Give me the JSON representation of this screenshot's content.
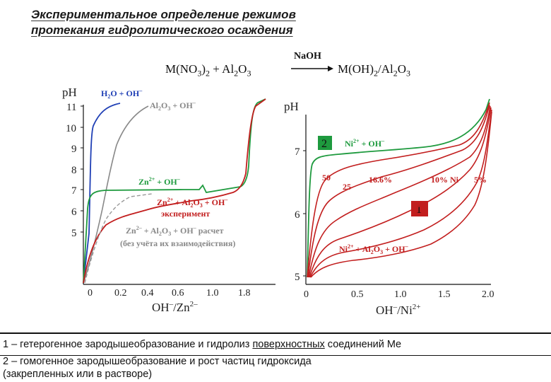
{
  "slide": {
    "title_line1": "Экспериментальное определение режимов",
    "title_line2": "протекания гидролитического осаждения",
    "reaction": {
      "left": "M(NO3)2 + Al2O3",
      "reagent": "NaOH",
      "right": "M(OH)2/Al2O3"
    },
    "footer": {
      "line1_prefix": "1 – гетерогенное зародышеобразование и гидролиз ",
      "line1_underlined": "поверхностных",
      "line1_suffix": " соединений Me",
      "line2": "2 –  гомогенное зародышеобразование и рост частиц  гидроксида",
      "line3": "(закрепленных или в растворе)"
    }
  },
  "chart_data": [
    {
      "type": "line",
      "ylabel": "pH",
      "xlabel": "OH⁻/Zn²⁺",
      "x_ticks": [
        "0",
        "0.2",
        "0.4",
        "0.6",
        "1.0",
        "1.8"
      ],
      "y_ticks": [
        "5",
        "6",
        "7",
        "8",
        "9",
        "10",
        "11"
      ],
      "ylim": [
        5,
        11.5
      ],
      "series": [
        {
          "name": "H2O + OH⁻",
          "color": "#1f3fb5",
          "points": [
            [
              0,
              5.2
            ],
            [
              0.02,
              7.2
            ],
            [
              0.05,
              10.6
            ],
            [
              0.1,
              10.95
            ],
            [
              0.2,
              11.1
            ],
            [
              0.4,
              11.3
            ]
          ]
        },
        {
          "name": "Al2O3 + OH⁻",
          "color": "#888888",
          "points": [
            [
              0,
              5.3
            ],
            [
              0.05,
              6.0
            ],
            [
              0.15,
              7.5
            ],
            [
              0.25,
              9.3
            ],
            [
              0.4,
              10.3
            ],
            [
              0.6,
              10.85
            ],
            [
              0.9,
              11.2
            ]
          ]
        },
        {
          "name": "Zn²⁺ + OH⁻",
          "color": "#1e9a3e",
          "points": [
            [
              0,
              5.2
            ],
            [
              0.02,
              6.7
            ],
            [
              0.08,
              6.95
            ],
            [
              0.4,
              7.0
            ],
            [
              1.0,
              7.05
            ],
            [
              1.55,
              7.15
            ],
            [
              1.7,
              7.8
            ],
            [
              1.78,
              9.5
            ],
            [
              1.82,
              10.5
            ],
            [
              1.9,
              11.1
            ]
          ]
        },
        {
          "name": "Zn²⁺ + Al2O3 + OH⁻ эксперимент",
          "color": "#c21e1e",
          "points": [
            [
              0,
              5.3
            ],
            [
              0.1,
              5.85
            ],
            [
              0.3,
              6.3
            ],
            [
              0.6,
              6.55
            ],
            [
              1.0,
              6.75
            ],
            [
              1.5,
              6.95
            ],
            [
              1.65,
              7.3
            ],
            [
              1.75,
              8.8
            ],
            [
              1.82,
              10.4
            ],
            [
              1.95,
              11.1
            ]
          ]
        },
        {
          "name": "Zn²⁺ + Al2O3 + OH⁻ расчет (без учёта их взаимодействия)",
          "color": "#999999",
          "dashed": true,
          "points": [
            [
              0,
              5.3
            ],
            [
              0.08,
              5.9
            ],
            [
              0.2,
              6.5
            ],
            [
              0.4,
              6.9
            ],
            [
              0.7,
              7.0
            ],
            [
              1.0,
              7.05
            ]
          ]
        }
      ],
      "annotations": [
        "2",
        "1"
      ]
    },
    {
      "type": "line",
      "ylabel": "pH",
      "xlabel": "OH⁻/Ni²⁺",
      "x_ticks": [
        "0",
        "0.5",
        "1.0",
        "1.5",
        "2.0"
      ],
      "y_ticks": [
        "5",
        "6",
        "7"
      ],
      "xlim": [
        0,
        2.0
      ],
      "ylim": [
        4.9,
        7.9
      ],
      "series": [
        {
          "name": "Ni²⁺ + OH⁻",
          "color": "#1e9a3e",
          "points": [
            [
              0,
              5.2
            ],
            [
              0.03,
              6.8
            ],
            [
              0.1,
              6.9
            ],
            [
              0.5,
              7.05
            ],
            [
              1.0,
              7.15
            ],
            [
              1.5,
              7.25
            ],
            [
              1.8,
              7.4
            ],
            [
              2.0,
              7.8
            ]
          ]
        },
        {
          "name": "50",
          "color": "#c21e1e",
          "points": [
            [
              0,
              5.2
            ],
            [
              0.05,
              6.2
            ],
            [
              0.15,
              6.55
            ],
            [
              0.4,
              6.8
            ],
            [
              0.9,
              7.0
            ],
            [
              1.5,
              7.15
            ],
            [
              1.9,
              7.45
            ],
            [
              2.0,
              7.75
            ]
          ]
        },
        {
          "name": "25",
          "color": "#c21e1e",
          "points": [
            [
              0,
              5.2
            ],
            [
              0.06,
              5.9
            ],
            [
              0.2,
              6.25
            ],
            [
              0.5,
              6.6
            ],
            [
              1.0,
              6.9
            ],
            [
              1.5,
              7.1
            ],
            [
              1.9,
              7.4
            ],
            [
              2.0,
              7.7
            ]
          ]
        },
        {
          "name": "16.6%",
          "color": "#c21e1e",
          "points": [
            [
              0,
              5.2
            ],
            [
              0.1,
              5.75
            ],
            [
              0.3,
              6.05
            ],
            [
              0.7,
              6.45
            ],
            [
              1.2,
              6.8
            ],
            [
              1.7,
              7.1
            ],
            [
              2.0,
              7.6
            ]
          ]
        },
        {
          "name": "10% Ni",
          "color": "#c21e1e",
          "points": [
            [
              0,
              5.2
            ],
            [
              0.15,
              5.55
            ],
            [
              0.5,
              5.85
            ],
            [
              1.0,
              6.25
            ],
            [
              1.5,
              6.7
            ],
            [
              1.85,
              7.1
            ],
            [
              2.0,
              7.55
            ]
          ]
        },
        {
          "name": "5%",
          "color": "#c21e1e",
          "points": [
            [
              0,
              5.15
            ],
            [
              0.2,
              5.45
            ],
            [
              0.6,
              5.6
            ],
            [
              1.1,
              5.85
            ],
            [
              1.5,
              6.2
            ],
            [
              1.85,
              6.8
            ],
            [
              2.0,
              7.5
            ]
          ]
        },
        {
          "name": "Ni²⁺ + Al2O3 + OH⁻",
          "color": "#c21e1e",
          "points": [
            [
              0,
              5.1
            ],
            [
              0.2,
              5.35
            ],
            [
              0.7,
              5.45
            ],
            [
              1.2,
              5.6
            ],
            [
              1.6,
              5.9
            ],
            [
              1.9,
              6.5
            ],
            [
              2.0,
              7.45
            ]
          ]
        }
      ],
      "annotations": [
        "2",
        "1"
      ]
    }
  ]
}
